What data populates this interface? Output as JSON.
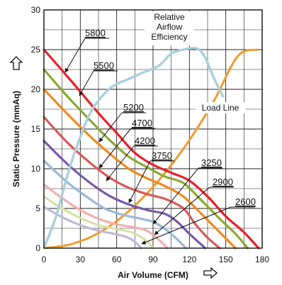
{
  "chart_data": {
    "type": "line",
    "xlabel": "Air Volume (CFM)",
    "ylabel": "Static Pressure (mmAq)",
    "xlim": [
      0,
      180
    ],
    "ylim": [
      0,
      30
    ],
    "xticks": [
      0,
      30,
      60,
      90,
      120,
      150,
      180
    ],
    "yticks": [
      0,
      5,
      10,
      15,
      20,
      25,
      30
    ],
    "grid": true,
    "series": [
      {
        "name": "5800",
        "color": "#e8202a",
        "points": [
          [
            0,
            25
          ],
          [
            20,
            21.5
          ],
          [
            45,
            17
          ],
          [
            60,
            14.5
          ],
          [
            75,
            12
          ],
          [
            90,
            10.5
          ],
          [
            105,
            9.5
          ],
          [
            120,
            8.5
          ],
          [
            135,
            6.5
          ],
          [
            150,
            4
          ],
          [
            165,
            2
          ],
          [
            177,
            0
          ]
        ]
      },
      {
        "name": "5500",
        "color": "#8aaa2e",
        "points": [
          [
            0,
            22.5
          ],
          [
            20,
            19
          ],
          [
            40,
            15.8
          ],
          [
            55,
            13.5
          ],
          [
            70,
            11.5
          ],
          [
            85,
            10.2
          ],
          [
            100,
            9
          ],
          [
            115,
            8.2
          ],
          [
            130,
            6
          ],
          [
            145,
            3.7
          ],
          [
            158,
            1.8
          ],
          [
            168,
            0
          ]
        ]
      },
      {
        "name": "5200",
        "color": "#f08a1e",
        "points": [
          [
            0,
            20
          ],
          [
            20,
            16.8
          ],
          [
            40,
            13.8
          ],
          [
            55,
            11.8
          ],
          [
            70,
            10
          ],
          [
            85,
            8.8
          ],
          [
            100,
            7.8
          ],
          [
            115,
            6.5
          ],
          [
            130,
            4.3
          ],
          [
            145,
            2
          ],
          [
            158,
            0
          ]
        ]
      },
      {
        "name": "4700",
        "color": "#d85a5a",
        "points": [
          [
            0,
            16.5
          ],
          [
            20,
            13.2
          ],
          [
            40,
            10.5
          ],
          [
            55,
            8.8
          ],
          [
            70,
            7.6
          ],
          [
            85,
            6.8
          ],
          [
            100,
            6.2
          ],
          [
            115,
            5
          ],
          [
            125,
            3
          ],
          [
            135,
            1.3
          ],
          [
            145,
            0
          ]
        ]
      },
      {
        "name": "4200",
        "color": "#7a5aa8",
        "points": [
          [
            0,
            13.5
          ],
          [
            20,
            10.5
          ],
          [
            40,
            8
          ],
          [
            55,
            6.5
          ],
          [
            70,
            5.5
          ],
          [
            85,
            4.8
          ],
          [
            100,
            4.3
          ],
          [
            110,
            3.3
          ],
          [
            120,
            1.8
          ],
          [
            128,
            0.7
          ],
          [
            133,
            0
          ]
        ]
      },
      {
        "name": "3750",
        "color": "#9ab8d8",
        "points": [
          [
            0,
            11
          ],
          [
            20,
            8.2
          ],
          [
            35,
            6.5
          ],
          [
            50,
            5
          ],
          [
            65,
            4.2
          ],
          [
            80,
            3.7
          ],
          [
            90,
            3.3
          ],
          [
            100,
            2.4
          ],
          [
            110,
            1.1
          ],
          [
            117,
            0
          ]
        ]
      },
      {
        "name": "3250",
        "color": "#f0b0b0",
        "points": [
          [
            0,
            8
          ],
          [
            15,
            6.3
          ],
          [
            30,
            4.8
          ],
          [
            45,
            3.7
          ],
          [
            60,
            3
          ],
          [
            75,
            2.6
          ],
          [
            85,
            2.2
          ],
          [
            92,
            1.4
          ],
          [
            98,
            0.6
          ],
          [
            102,
            0
          ]
        ]
      },
      {
        "name": "2900",
        "color": "#d8e0a8",
        "points": [
          [
            0,
            6.5
          ],
          [
            15,
            5
          ],
          [
            30,
            3.8
          ],
          [
            45,
            2.9
          ],
          [
            60,
            2.4
          ],
          [
            72,
            2
          ],
          [
            80,
            1.4
          ],
          [
            86,
            0.7
          ],
          [
            90,
            0
          ]
        ]
      },
      {
        "name": "2600",
        "color": "#c0b8d8",
        "points": [
          [
            0,
            5.2
          ],
          [
            15,
            3.9
          ],
          [
            30,
            2.9
          ],
          [
            45,
            2.2
          ],
          [
            58,
            1.8
          ],
          [
            68,
            1.4
          ],
          [
            75,
            0.8
          ],
          [
            80,
            0
          ]
        ]
      }
    ],
    "efficiency_curve": {
      "name": "Relative Airflow Efficiency",
      "color": "#a8d0dc",
      "points": [
        [
          0,
          0
        ],
        [
          10,
          4
        ],
        [
          20,
          9.5
        ],
        [
          30,
          14
        ],
        [
          40,
          17.5
        ],
        [
          55,
          20.2
        ],
        [
          70,
          21.3
        ],
        [
          80,
          22
        ],
        [
          95,
          23
        ],
        [
          105,
          24.5
        ],
        [
          115,
          25
        ],
        [
          123,
          25.2
        ],
        [
          128,
          25
        ],
        [
          133,
          24
        ],
        [
          140,
          21.5
        ],
        [
          148,
          19
        ]
      ]
    },
    "load_line": {
      "name": "Load Line",
      "color": "#f09a2e",
      "points": [
        [
          0,
          0
        ],
        [
          20,
          0.4
        ],
        [
          40,
          1.5
        ],
        [
          60,
          3.4
        ],
        [
          80,
          6.1
        ],
        [
          100,
          9.5
        ],
        [
          120,
          13.6
        ],
        [
          140,
          18.5
        ],
        [
          160,
          24.2
        ],
        [
          177,
          25
        ]
      ]
    },
    "annotations": [
      {
        "text": "5800",
        "target": "5800"
      },
      {
        "text": "5500",
        "target": "5500"
      },
      {
        "text": "5200",
        "target": "5200"
      },
      {
        "text": "4700",
        "target": "4700"
      },
      {
        "text": "4200",
        "target": "4200"
      },
      {
        "text": "3750",
        "target": "3750"
      },
      {
        "text": "3250",
        "target": "3250"
      },
      {
        "text": "2900",
        "target": "2900"
      },
      {
        "text": "2600",
        "target": "2600"
      }
    ],
    "efficiency_label": [
      "Relative",
      "Airflow",
      "Efficiency"
    ],
    "load_line_label": "Load Line"
  }
}
